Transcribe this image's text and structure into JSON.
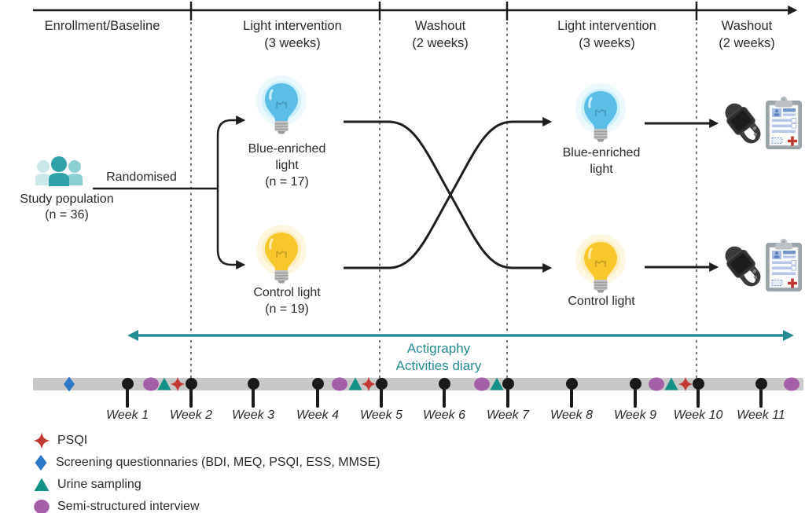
{
  "colors": {
    "line": "#1e1e1e",
    "teal_accent": "#238b92",
    "timeline_bar": "#c8c8c8",
    "psqi_red": "#c23934",
    "screening_blue": "#2e79c7",
    "urine_teal": "#149186",
    "interview_purple": "#a55fa9",
    "blue_bulb": "#5abee7",
    "yellow_bulb": "#f7c72b"
  },
  "phases": [
    {
      "label": "Enrollment/Baseline",
      "duration": ""
    },
    {
      "label": "Light intervention",
      "duration": "(3 weeks)"
    },
    {
      "label": "Washout",
      "duration": "(2 weeks)"
    },
    {
      "label": "Light intervention",
      "duration": "(3 weeks)"
    },
    {
      "label": "Washout",
      "duration": "(2 weeks)"
    }
  ],
  "flow": {
    "population": {
      "line1": "Study population",
      "line2": "(n = 36)"
    },
    "randomised": "Randomised",
    "arm_blue_p1": {
      "line1": "Blue-enriched",
      "line2": "light",
      "n": "(n = 17)"
    },
    "arm_control_p1": {
      "line1": "Control light",
      "n": "(n = 19)"
    },
    "arm_blue_p2": {
      "line1": "Blue-enriched",
      "line2": "light"
    },
    "arm_control_p2": {
      "line1": "Control light"
    }
  },
  "actigraphy": {
    "line1": "Actigraphy",
    "line2": "Activities diary"
  },
  "timeline": {
    "weeks": [
      "Week 1",
      "Week 2",
      "Week 3",
      "Week 4",
      "Week 5",
      "Week 6",
      "Week 7",
      "Week 8",
      "Week 9",
      "Week 10",
      "Week 11"
    ],
    "events": [
      {
        "markers": [
          "screening-questionnaires"
        ],
        "at": "before Week 1"
      },
      {
        "markers": [
          "semi-structured-interview",
          "urine-sampling",
          "psqi"
        ],
        "at": "before Week 2"
      },
      {
        "markers": [
          "semi-structured-interview",
          "urine-sampling",
          "psqi"
        ],
        "at": "before Week 5"
      },
      {
        "markers": [
          "semi-structured-interview",
          "urine-sampling"
        ],
        "at": "before Week 7"
      },
      {
        "markers": [
          "semi-structured-interview",
          "urine-sampling",
          "psqi"
        ],
        "at": "before Week 10"
      },
      {
        "markers": [
          "semi-structured-interview"
        ],
        "at": "after Week 11"
      }
    ]
  },
  "legend": [
    {
      "icon": "psqi-star-icon",
      "label": "PSQI"
    },
    {
      "icon": "screening-diamond-icon",
      "label": "Screening questionnaries (BDI, MEQ, PSQI, ESS, MMSE)"
    },
    {
      "icon": "urine-triangle-icon",
      "label": "Urine sampling"
    },
    {
      "icon": "semi-structured-interview-icon",
      "label": "Semi-structured interview"
    }
  ]
}
